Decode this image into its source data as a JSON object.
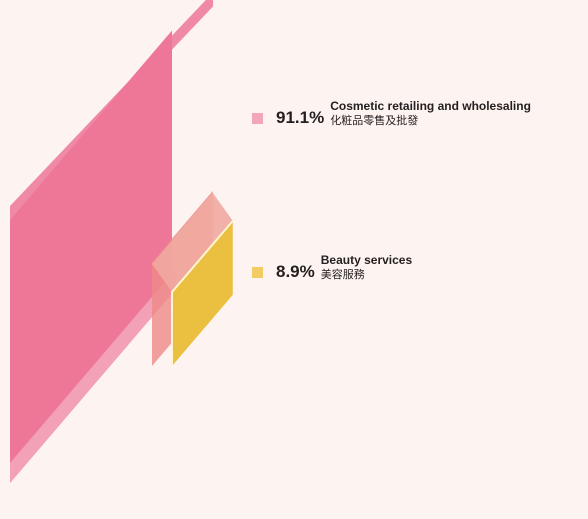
{
  "chart_data": {
    "type": "area",
    "title": "",
    "series": [
      {
        "key": "cosmetics",
        "value": 91.1,
        "value_label": "91.1%",
        "name_en": "Cosmetic retailing and wholesaling",
        "name_zh": "化粧品零售及批發",
        "color": "#ee7797",
        "swatch_color": "#f3a5b9"
      },
      {
        "key": "beauty",
        "value": 8.9,
        "value_label": "8.9%",
        "name_en": "Beauty services",
        "name_zh": "美容服務",
        "color": "#ebc041",
        "swatch_color": "#f2cd63"
      }
    ],
    "legend_position": "right"
  }
}
